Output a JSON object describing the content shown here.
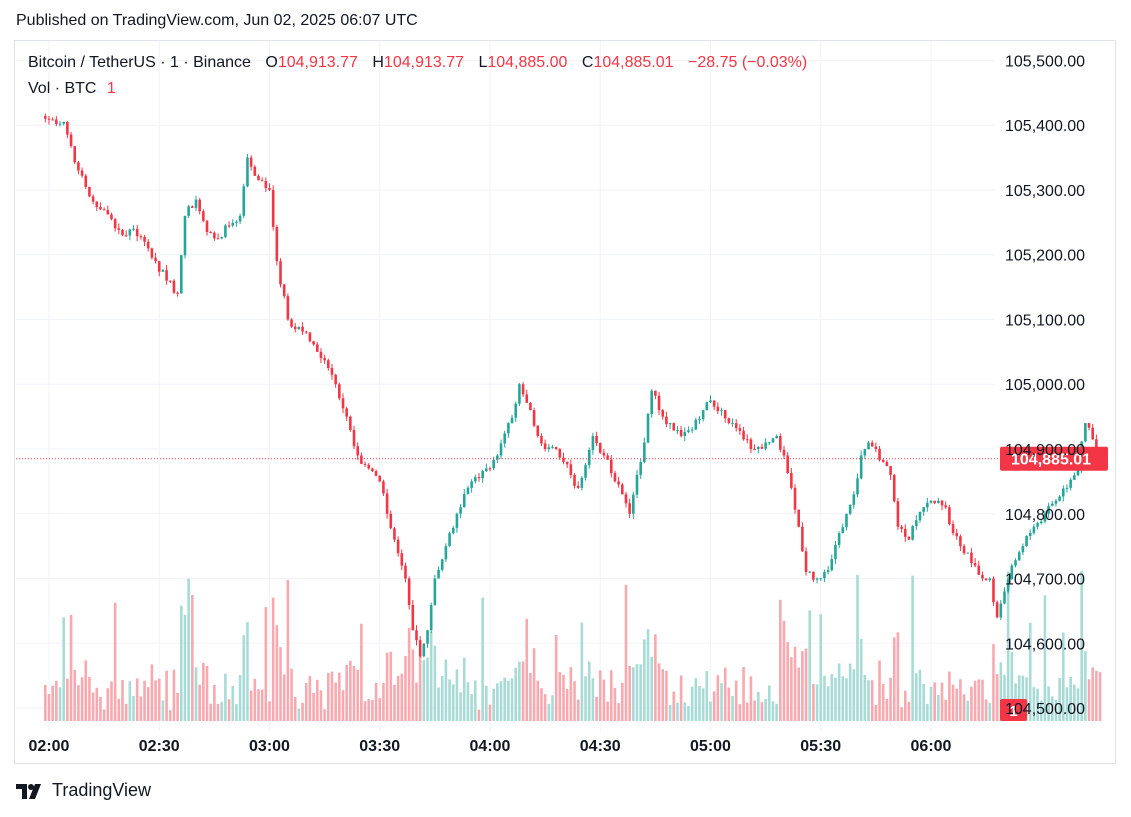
{
  "header": {
    "published": "Published on TradingView.com, Jun 02, 2025 06:07 UTC"
  },
  "legend": {
    "symbol": "Bitcoin / TetherUS · 1 · Binance",
    "open_label": "O",
    "open": "104,913.77",
    "high_label": "H",
    "high": "104,913.77",
    "low_label": "L",
    "low": "104,885.00",
    "close_label": "C",
    "close": "104,885.01",
    "change": "−28.75 (−0.03%)",
    "volume_label": "Vol · BTC",
    "volume_value": "1"
  },
  "footer": {
    "brand": "TradingView"
  },
  "colors": {
    "up": "#26a69a",
    "down": "#f23645",
    "up_volume": "#a8dbd5",
    "down_volume": "#f7a9af",
    "grid": "#f0f3fa",
    "price_line": "#f23645"
  },
  "chart_data": {
    "type": "candlestick",
    "title": "Bitcoin / TetherUS · 1 · Binance",
    "interval_minutes": 1,
    "y_axis": {
      "min": 104480,
      "max": 105530,
      "ticks": [
        "105,500.00",
        "105,400.00",
        "105,300.00",
        "105,200.00",
        "105,100.00",
        "105,000.00",
        "104,900.00",
        "104,800.00",
        "104,700.00",
        "104,600.00",
        "104,500.00"
      ],
      "tick_values": [
        105500,
        105400,
        105300,
        105200,
        105100,
        105000,
        104900,
        104800,
        104700,
        104600,
        104500
      ]
    },
    "x_axis": {
      "ticks": [
        "02:00",
        "02:30",
        "03:00",
        "03:30",
        "04:00",
        "04:30",
        "05:00",
        "05:30",
        "06:00"
      ],
      "tick_minutes": [
        120,
        150,
        180,
        210,
        240,
        270,
        300,
        330,
        360
      ]
    },
    "last_price_label": "104,885.01",
    "last_price": 104885.01,
    "volume_badge": "1",
    "anchors": [
      [
        119,
        105410
      ],
      [
        124,
        105405
      ],
      [
        128,
        105330
      ],
      [
        131,
        105290
      ],
      [
        134,
        105270
      ],
      [
        137,
        105255
      ],
      [
        140,
        105230
      ],
      [
        143,
        105240
      ],
      [
        146,
        105220
      ],
      [
        149,
        105190
      ],
      [
        152,
        105160
      ],
      [
        155,
        105140
      ],
      [
        157,
        105260
      ],
      [
        160,
        105285
      ],
      [
        163,
        105235
      ],
      [
        166,
        105225
      ],
      [
        169,
        105245
      ],
      [
        172,
        105260
      ],
      [
        174,
        105350
      ],
      [
        177,
        105315
      ],
      [
        180,
        105300
      ],
      [
        182,
        105190
      ],
      [
        185,
        105100
      ],
      [
        187,
        105085
      ],
      [
        190,
        105080
      ],
      [
        193,
        105050
      ],
      [
        196,
        105025
      ],
      [
        198,
        105000
      ],
      [
        201,
        104950
      ],
      [
        204,
        104890
      ],
      [
        207,
        104870
      ],
      [
        210,
        104850
      ],
      [
        212,
        104800
      ],
      [
        214,
        104760
      ],
      [
        217,
        104700
      ],
      [
        219,
        104620
      ],
      [
        221,
        104580
      ],
      [
        223,
        104620
      ],
      [
        225,
        104700
      ],
      [
        228,
        104750
      ],
      [
        231,
        104800
      ],
      [
        234,
        104840
      ],
      [
        237,
        104855
      ],
      [
        240,
        104870
      ],
      [
        242,
        104890
      ],
      [
        245,
        104940
      ],
      [
        247,
        104970
      ],
      [
        248,
        105000
      ],
      [
        251,
        104960
      ],
      [
        253,
        104920
      ],
      [
        255,
        104900
      ],
      [
        258,
        104900
      ],
      [
        260,
        104880
      ],
      [
        262,
        104860
      ],
      [
        264,
        104840
      ],
      [
        266,
        104875
      ],
      [
        268,
        104920
      ],
      [
        271,
        104890
      ],
      [
        274,
        104850
      ],
      [
        276,
        104830
      ],
      [
        278,
        104800
      ],
      [
        280,
        104860
      ],
      [
        282,
        104910
      ],
      [
        284,
        104990
      ],
      [
        287,
        104950
      ],
      [
        289,
        104940
      ],
      [
        292,
        104920
      ],
      [
        295,
        104930
      ],
      [
        298,
        104960
      ],
      [
        300,
        104975
      ],
      [
        303,
        104960
      ],
      [
        306,
        104940
      ],
      [
        309,
        104915
      ],
      [
        312,
        104900
      ],
      [
        315,
        104910
      ],
      [
        318,
        104920
      ],
      [
        320,
        104890
      ],
      [
        322,
        104840
      ],
      [
        324,
        104780
      ],
      [
        326,
        104710
      ],
      [
        329,
        104700
      ],
      [
        331,
        104710
      ],
      [
        333,
        104730
      ],
      [
        335,
        104770
      ],
      [
        337,
        104800
      ],
      [
        339,
        104830
      ],
      [
        341,
        104890
      ],
      [
        343,
        104910
      ],
      [
        345,
        104900
      ],
      [
        347,
        104880
      ],
      [
        349,
        104860
      ],
      [
        351,
        104780
      ],
      [
        354,
        104760
      ],
      [
        356,
        104790
      ],
      [
        358,
        104810
      ],
      [
        360,
        104820
      ],
      [
        362,
        104820
      ],
      [
        364,
        104810
      ],
      [
        366,
        104770
      ],
      [
        368,
        104750
      ],
      [
        370,
        104740
      ],
      [
        372,
        104720
      ],
      [
        374,
        104700
      ],
      [
        376,
        104700
      ],
      [
        378,
        104640
      ],
      [
        380,
        104680
      ],
      [
        382,
        104720
      ],
      [
        385,
        104750
      ],
      [
        388,
        104780
      ],
      [
        391,
        104800
      ],
      [
        394,
        104820
      ],
      [
        397,
        104840
      ],
      [
        400,
        104870
      ],
      [
        402,
        104940
      ],
      [
        404,
        104915
      ],
      [
        406,
        104885
      ]
    ],
    "volume_scale_max": 250,
    "volume_baseline": 8
  }
}
